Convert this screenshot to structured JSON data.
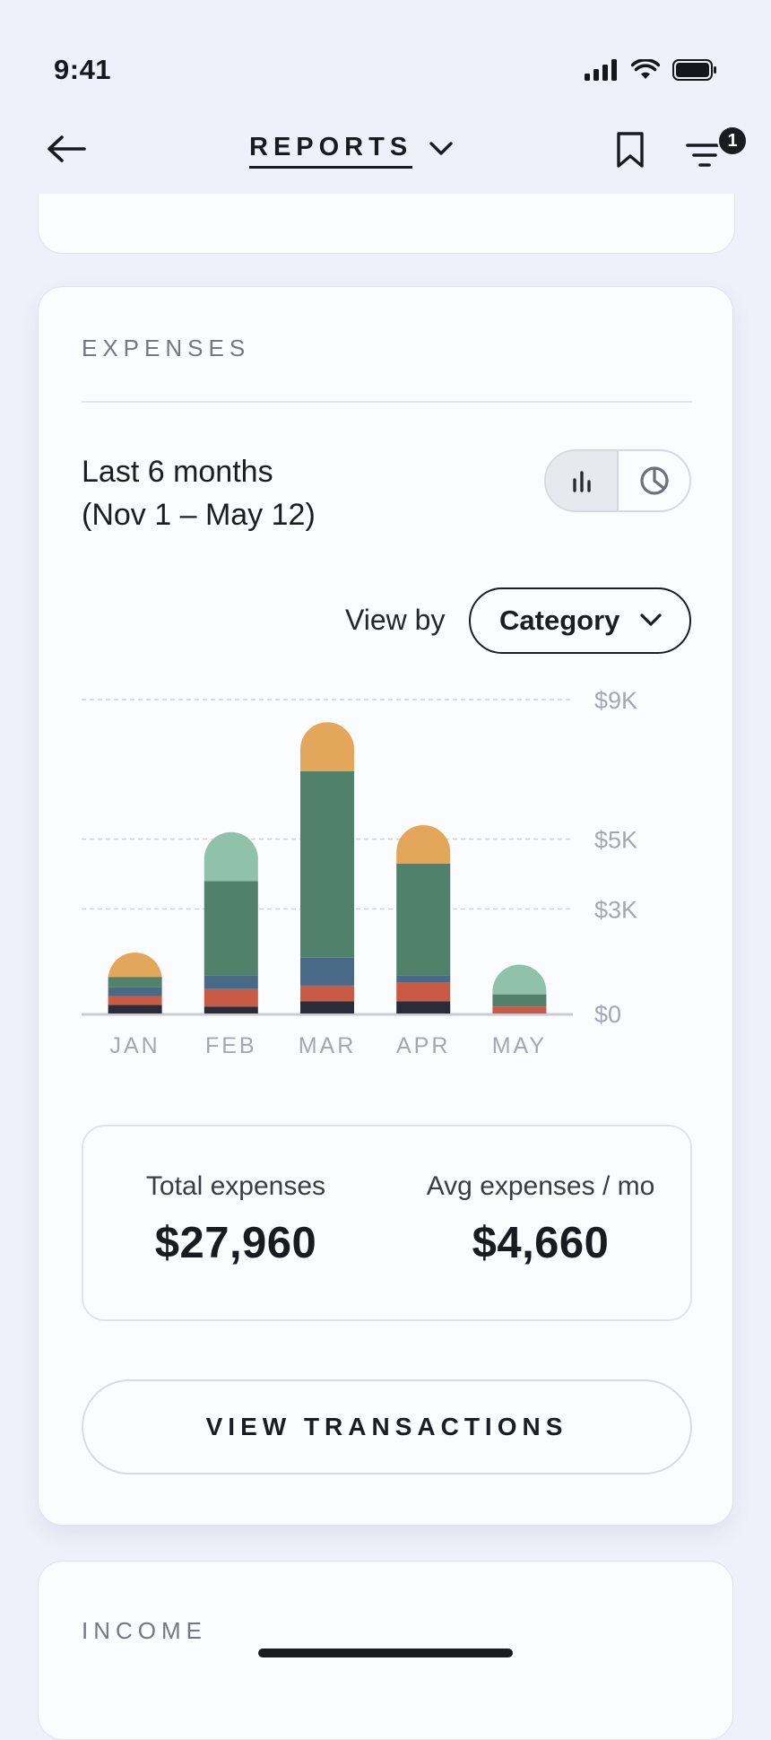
{
  "status": {
    "time": "9:41"
  },
  "nav": {
    "title": "REPORTS",
    "filter_badge": "1"
  },
  "expenses": {
    "section_label": "EXPENSES",
    "period_line1": "Last 6 months",
    "period_line2": "(Nov 1 – May 12)",
    "view_by_label": "View by",
    "view_by_value": "Category",
    "total_label": "Total expenses",
    "total_value": "$27,960",
    "avg_label": "Avg expenses / mo",
    "avg_value": "$4,660",
    "button_label": "VIEW TRANSACTIONS"
  },
  "income": {
    "section_label": "INCOME"
  },
  "colors": {
    "dark": "#2a2d38",
    "red": "#c95b45",
    "blue": "#486a86",
    "green": "#51816a",
    "mint": "#8fc1ab",
    "orange": "#e3a75c"
  },
  "chart_data": {
    "type": "bar",
    "stacked": true,
    "categories": [
      "JAN",
      "FEB",
      "MAR",
      "APR",
      "MAY"
    ],
    "y_ticks": [
      {
        "value": 0,
        "label": "$0"
      },
      {
        "value": 3000,
        "label": "$3K"
      },
      {
        "value": 5000,
        "label": "$5K"
      },
      {
        "value": 9000,
        "label": "$9K"
      }
    ],
    "ylim": [
      0,
      9000
    ],
    "grid": true,
    "series": [
      {
        "color": "#2a2d38",
        "values": [
          250,
          200,
          350,
          350,
          0
        ]
      },
      {
        "color": "#c95b45",
        "values": [
          250,
          500,
          450,
          550,
          200
        ]
      },
      {
        "color": "#486a86",
        "values": [
          250,
          400,
          800,
          200,
          0
        ]
      },
      {
        "color": "#51816a",
        "values": [
          300,
          2700,
          5350,
          3200,
          350
        ]
      },
      {
        "color": "#8fc1ab",
        "values": [
          0,
          1400,
          0,
          0,
          850
        ]
      },
      {
        "color": "#e3a75c",
        "values": [
          700,
          0,
          1400,
          1100,
          0
        ]
      }
    ]
  }
}
